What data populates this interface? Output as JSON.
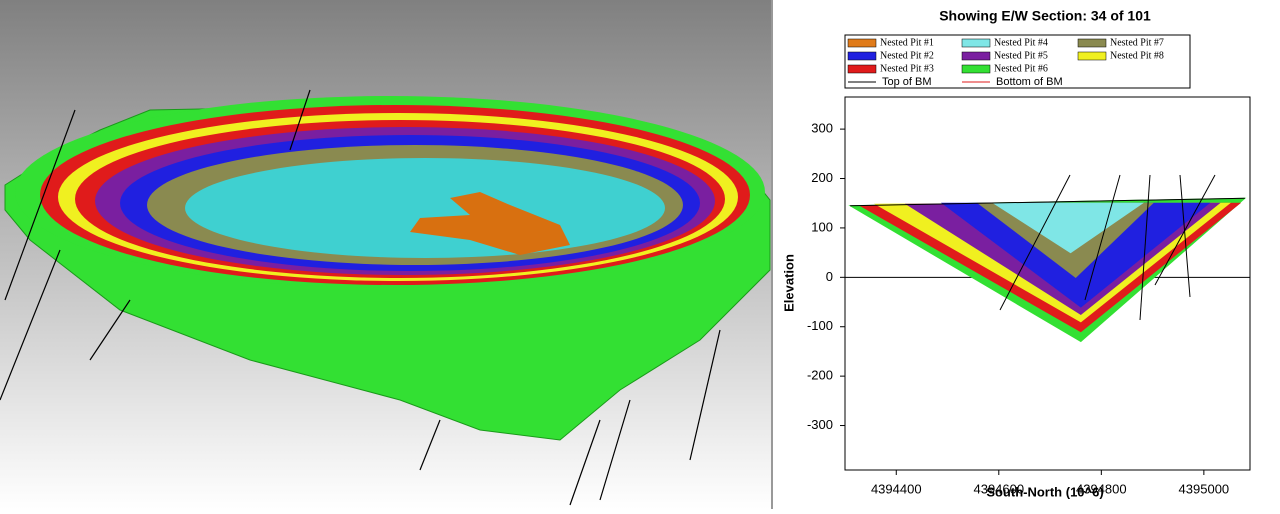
{
  "chart_data": {
    "type": "section",
    "title": "Showing E/W Section: 34 of 101",
    "x_label": "South-North (10^6)",
    "y_label": "Elevation",
    "xlim": [
      4394300,
      4395090
    ],
    "ylim": [
      -390,
      365
    ],
    "xticks": [
      4394400,
      4394600,
      4394800,
      4395000
    ],
    "yticks": [
      300,
      200,
      100,
      0,
      -100,
      -200,
      -300
    ],
    "series": [
      {
        "name": "Nested Pit #1",
        "color": "#e07b1a",
        "x": [],
        "y": []
      },
      {
        "name": "Nested Pit #2",
        "color": "#2020e0",
        "x": [
          4394490,
          4394760,
          4395010
        ],
        "y": [
          150,
          -60,
          150
        ]
      },
      {
        "name": "Nested Pit #3",
        "color": "#e01b1b",
        "x": [
          4394330,
          4394760,
          4395070
        ],
        "y": [
          145,
          -110,
          150
        ]
      },
      {
        "name": "Nested Pit #4",
        "color": "#7fe6e6",
        "x": [
          4394590,
          4394740,
          4394880
        ],
        "y": [
          150,
          50,
          150
        ]
      },
      {
        "name": "Nested Pit #5",
        "color": "#7a1fa0",
        "x": [
          4394420,
          4394760,
          4395030
        ],
        "y": [
          148,
          -75,
          150
        ]
      },
      {
        "name": "Nested Pit #6",
        "color": "#33e033",
        "x": [
          4394310,
          4394760,
          4395080
        ],
        "y": [
          145,
          -130,
          160
        ]
      },
      {
        "name": "Nested Pit #7",
        "color": "#8a8a50",
        "x": [
          4394560,
          4394750,
          4394900
        ],
        "y": [
          150,
          0,
          150
        ]
      },
      {
        "name": "Nested Pit #8",
        "color": "#f0f020",
        "x": [
          4394360,
          4394760,
          4395050
        ],
        "y": [
          148,
          -90,
          150
        ]
      }
    ],
    "lines": [
      {
        "name": "Top of BM",
        "color": "#000000",
        "x": [
          4394310,
          4395080
        ],
        "y": [
          145,
          160
        ]
      },
      {
        "name": "Bottom of BM",
        "color": "#e01b1b",
        "x": [],
        "y": []
      }
    ]
  }
}
